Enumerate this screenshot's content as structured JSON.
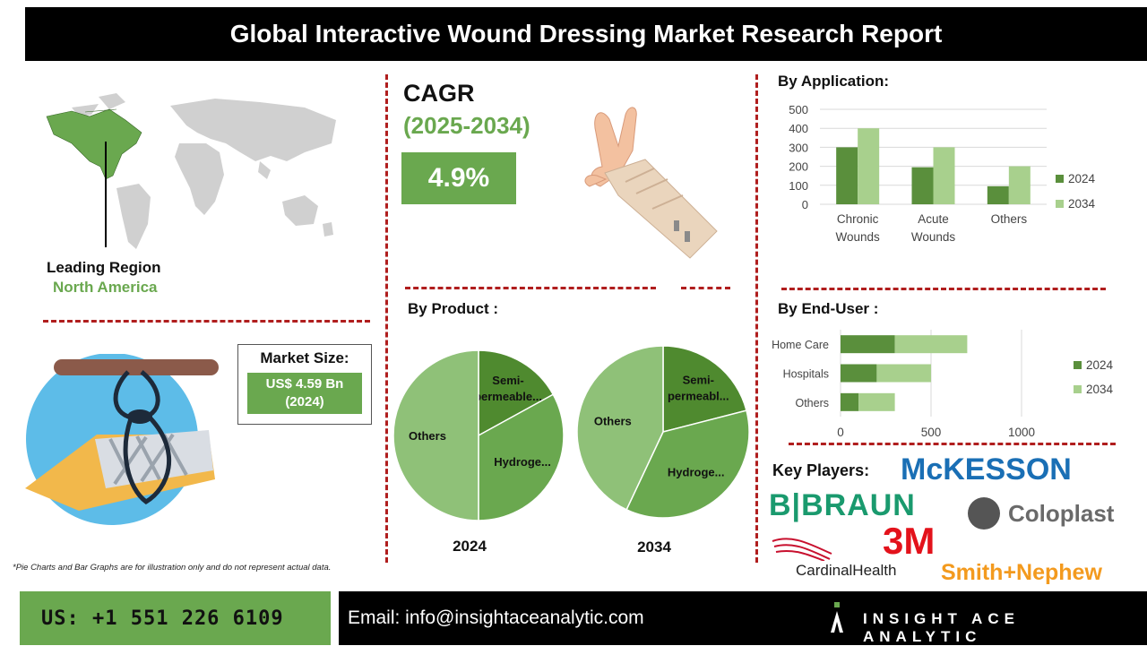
{
  "header": {
    "title": "Global Interactive Wound Dressing Market Research Report"
  },
  "region": {
    "label": "Leading Region",
    "value": "North America"
  },
  "cagr": {
    "label": "CAGR",
    "period": "(2025-2034)",
    "value": "4.9%"
  },
  "market_size": {
    "label": "Market Size:",
    "value_line1": "US$ 4.59 Bn",
    "value_line2": "(2024)"
  },
  "product": {
    "title": "By Product :"
  },
  "application": {
    "title": "By Application:"
  },
  "end_user": {
    "title": "By End-User :"
  },
  "players": {
    "title": "Key Players:",
    "list": [
      "McKESSON",
      "B|BRAUN",
      "Coloplast",
      "3M",
      "CardinalHealth",
      "Smith+Nephew"
    ]
  },
  "disclaimer": "*Pie Charts and Bar Graphs are for illustration only and do not represent actual data.",
  "footer": {
    "phone": "US: +1 551 226 6109",
    "email": "Email: info@insightaceanalytic.com",
    "brand": "INSIGHT ACE ANALYTIC"
  },
  "colors": {
    "dark_green": "#5a8f3c",
    "light_green": "#a8d08d",
    "mid_green": "#6aa84f",
    "pie_light": "#8fc178",
    "pie_dark": "#4f8a2f",
    "accent_red": "#b01e1e"
  },
  "chart_data": [
    {
      "type": "bar",
      "title": "By Application:",
      "categories": [
        "Chronic Wounds",
        "Acute Wounds",
        "Others"
      ],
      "series": [
        {
          "name": "2024",
          "values": [
            300,
            195,
            95
          ]
        },
        {
          "name": "2034",
          "values": [
            400,
            300,
            200
          ]
        }
      ],
      "ylim": [
        0,
        500
      ],
      "yticks": [
        0,
        100,
        200,
        300,
        400,
        500
      ],
      "grid": true,
      "legend": "right"
    },
    {
      "type": "bar",
      "orientation": "horizontal",
      "stacked": true,
      "title": "By End-User :",
      "categories": [
        "Home Care",
        "Hospitals",
        "Others"
      ],
      "series": [
        {
          "name": "2024",
          "values": [
            300,
            200,
            100
          ]
        },
        {
          "name": "2034",
          "values": [
            400,
            300,
            200
          ]
        }
      ],
      "xlim": [
        0,
        1000
      ],
      "xticks": [
        0,
        500,
        1000
      ],
      "grid": true,
      "legend": "right"
    },
    {
      "type": "pie",
      "label": "2024",
      "slices": [
        {
          "name": "Others",
          "value": 50
        },
        {
          "name": "Semi-permeable...",
          "value": 17
        },
        {
          "name": "Hydroge...",
          "value": 33
        }
      ]
    },
    {
      "type": "pie",
      "label": "2034",
      "slices": [
        {
          "name": "Others",
          "value": 43
        },
        {
          "name": "Semi-permeabl...",
          "value": 21
        },
        {
          "name": "Hydroge...",
          "value": 36
        }
      ]
    }
  ]
}
